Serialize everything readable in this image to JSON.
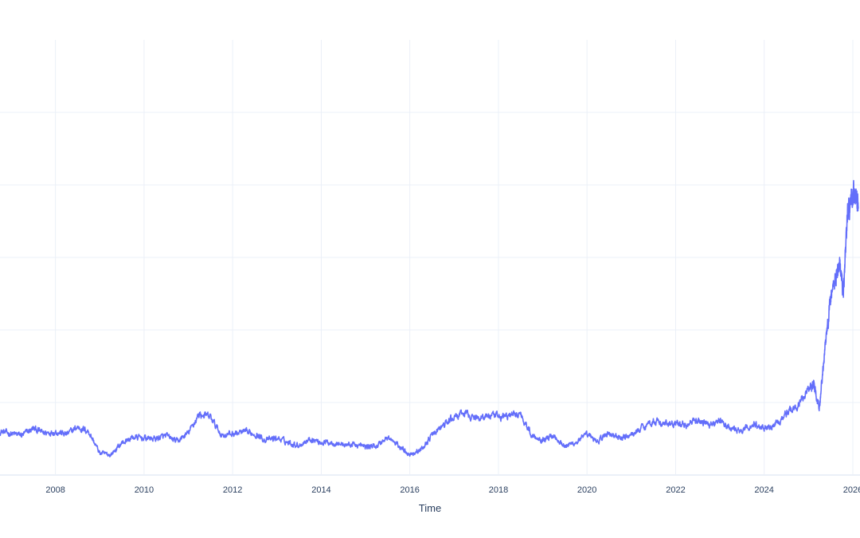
{
  "chart_data": {
    "type": "line",
    "title": "",
    "xlabel": "Time",
    "ylabel": "",
    "x_tick_labels": [
      "2008",
      "2010",
      "2012",
      "2014",
      "2016",
      "2018",
      "2020",
      "2022",
      "2024",
      "2026"
    ],
    "xlim": [
      "2006-10-01",
      "2026-03-01"
    ],
    "ylim": [
      0,
      600
    ],
    "y_grid_values": [
      100,
      200,
      300,
      400,
      500
    ],
    "grid": true,
    "legend": "none",
    "colors": {
      "line": "#636efa",
      "grid": "#ebf0f8",
      "text": "#2a3f5f"
    },
    "series": [
      {
        "x": [
          "2006-10-01",
          "2007-01-01",
          "2007-04-01",
          "2007-07-01",
          "2007-10-01",
          "2008-01-01",
          "2008-04-01",
          "2008-07-01",
          "2008-10-01",
          "2009-01-01",
          "2009-04-01",
          "2009-07-01",
          "2009-10-01",
          "2010-01-01",
          "2010-04-01",
          "2010-07-01",
          "2010-10-01",
          "2011-01-01",
          "2011-04-01",
          "2011-07-01",
          "2011-10-01",
          "2012-01-01",
          "2012-04-01",
          "2012-07-01",
          "2012-10-01",
          "2013-01-01",
          "2013-04-01",
          "2013-07-01",
          "2013-10-01",
          "2014-01-01",
          "2014-04-01",
          "2014-07-01",
          "2014-10-01",
          "2015-01-01",
          "2015-04-01",
          "2015-07-01",
          "2015-10-01",
          "2016-01-01",
          "2016-04-01",
          "2016-07-01",
          "2016-10-01",
          "2017-01-01",
          "2017-04-01",
          "2017-07-01",
          "2017-10-01",
          "2018-01-01",
          "2018-04-01",
          "2018-07-01",
          "2018-10-01",
          "2019-01-01",
          "2019-04-01",
          "2019-07-01",
          "2019-10-01",
          "2020-01-01",
          "2020-04-01",
          "2020-07-01",
          "2020-10-01",
          "2021-01-01",
          "2021-04-01",
          "2021-07-01",
          "2021-10-01",
          "2022-01-01",
          "2022-04-01",
          "2022-07-01",
          "2022-10-01",
          "2023-01-01",
          "2023-04-01",
          "2023-07-01",
          "2023-10-01",
          "2024-01-01",
          "2024-04-01",
          "2024-07-01",
          "2024-10-01",
          "2025-01-01",
          "2025-02-15",
          "2025-04-01",
          "2025-05-15",
          "2025-07-01",
          "2025-08-15",
          "2025-09-15",
          "2025-10-15",
          "2025-11-15",
          "2025-12-15",
          "2026-01-15",
          "2026-02-15"
        ],
        "y": [
          60,
          57,
          55,
          64,
          58,
          60,
          56,
          66,
          60,
          30,
          28,
          44,
          52,
          51,
          50,
          54,
          46,
          58,
          84,
          80,
          55,
          57,
          59,
          57,
          48,
          51,
          45,
          41,
          50,
          45,
          45,
          42,
          42,
          39,
          40,
          52,
          40,
          29,
          34,
          55,
          68,
          80,
          85,
          78,
          82,
          80,
          82,
          85,
          55,
          49,
          55,
          40,
          45,
          55,
          47,
          58,
          50,
          55,
          66,
          75,
          70,
          70,
          70,
          75,
          70,
          75,
          63,
          60,
          70,
          65,
          70,
          85,
          95,
          120,
          125,
          95,
          170,
          245,
          275,
          290,
          250,
          355,
          380,
          390,
          370
        ]
      }
    ]
  }
}
